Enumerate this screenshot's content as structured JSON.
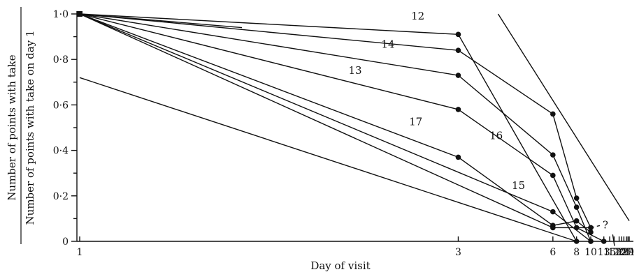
{
  "chart_data": {
    "type": "line",
    "xlabel": "Day of visit",
    "ylabel_numerator": "Number of points with take",
    "ylabel_denominator": "Number of points with take on day 1",
    "x_tick_labels": [
      "1",
      "3",
      "6",
      "8",
      "10",
      "13",
      "15",
      "17",
      "20",
      "22",
      "24",
      "27",
      "29",
      "31"
    ],
    "y_tick_labels": [
      "0",
      "0·2",
      "0·4",
      "0·6",
      "0·8",
      "1·0"
    ],
    "ylim": [
      0,
      1.0
    ],
    "x_axis_scale": "reciprocal (1/day)",
    "grid": false,
    "series": [
      {
        "name": "12",
        "x": [
          1,
          3,
          8
        ],
        "y": [
          1.0,
          0.91,
          0.0
        ]
      },
      {
        "name": "14",
        "x": [
          1,
          3,
          6,
          8,
          10
        ],
        "y": [
          1.0,
          0.84,
          0.56,
          0.19,
          0.06
        ]
      },
      {
        "name": "13",
        "x": [
          1,
          3,
          6,
          8,
          10
        ],
        "y": [
          1.0,
          0.73,
          0.38,
          0.15,
          0.0
        ]
      },
      {
        "name": "16",
        "x": [
          1,
          3,
          6,
          8,
          13
        ],
        "y": [
          1.0,
          0.58,
          0.29,
          0.06,
          0.0
        ]
      },
      {
        "name": "15",
        "x": [
          1,
          6,
          10
        ],
        "y": [
          1.0,
          0.13,
          0.0
        ]
      },
      {
        "name": "17",
        "x": [
          1,
          3,
          6,
          8,
          10
        ],
        "y": [
          1.0,
          0.37,
          0.07,
          0.09,
          0.04
        ]
      },
      {
        "name": "",
        "x": [
          1,
          6,
          10
        ],
        "y": [
          1.0,
          0.06,
          0.06
        ],
        "dashed_extension_label": "?"
      }
    ],
    "reference_lines": [
      {
        "x": [
          1,
          1.4
        ],
        "y": [
          1.0,
          0.94
        ]
      },
      {
        "x": [
          1,
          8
        ],
        "y": [
          0.72,
          0.0
        ]
      },
      {
        "x": [
          3.8,
          31
        ],
        "y": [
          1.0,
          0.09
        ]
      },
      {
        "x": [
          16.3,
          17.2
        ],
        "y": [
          0.03,
          -0.02
        ]
      }
    ]
  }
}
